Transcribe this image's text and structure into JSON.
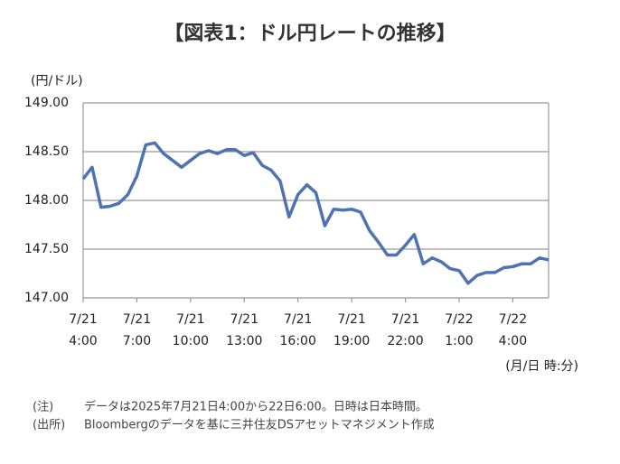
{
  "chart_data": {
    "type": "line",
    "title": "【図表1：ドル円レートの推移】",
    "y_label": "(円/ドル)",
    "x_label": "(月/日 時:分)",
    "notes": [
      [
        "(注)",
        "データは2025年7月21日4:00から22日6:00。日時は日本時間。"
      ],
      [
        "(出所)",
        "Bloombergのデータを基に三井住友DSアセットマネジメント作成"
      ]
    ],
    "x": [
      "7/21 4:00",
      "7/21 4:30",
      "7/21 5:00",
      "7/21 5:30",
      "7/21 6:00",
      "7/21 6:30",
      "7/21 7:00",
      "7/21 7:30",
      "7/21 8:00",
      "7/21 8:30",
      "7/21 9:00",
      "7/21 9:30",
      "7/21 10:00",
      "7/21 10:30",
      "7/21 11:00",
      "7/21 11:30",
      "7/21 12:00",
      "7/21 12:30",
      "7/21 13:00",
      "7/21 13:30",
      "7/21 14:00",
      "7/21 14:30",
      "7/21 15:00",
      "7/21 15:30",
      "7/21 16:00",
      "7/21 16:30",
      "7/21 17:00",
      "7/21 17:30",
      "7/21 18:00",
      "7/21 18:30",
      "7/21 19:00",
      "7/21 19:30",
      "7/21 20:00",
      "7/21 20:30",
      "7/21 21:00",
      "7/21 21:30",
      "7/21 22:00",
      "7/21 22:30",
      "7/21 23:00",
      "7/21 23:30",
      "7/22 0:00",
      "7/22 0:30",
      "7/22 1:00",
      "7/22 1:30",
      "7/22 2:00",
      "7/22 2:30",
      "7/22 3:00",
      "7/22 3:30",
      "7/22 4:00",
      "7/22 4:30",
      "7/22 5:00",
      "7/22 5:30",
      "7/22 6:00"
    ],
    "series": [
      {
        "name": "USD/JPY",
        "color": "#4f73b0",
        "values": [
          148.22,
          148.34,
          147.93,
          147.94,
          147.97,
          148.06,
          148.25,
          148.57,
          148.59,
          148.48,
          148.41,
          148.34,
          148.41,
          148.48,
          148.51,
          148.48,
          148.52,
          148.52,
          148.46,
          148.49,
          148.36,
          148.31,
          148.2,
          147.83,
          148.06,
          148.16,
          148.08,
          147.74,
          147.91,
          147.9,
          147.91,
          147.88,
          147.69,
          147.57,
          147.44,
          147.44,
          147.54,
          147.65,
          147.35,
          147.41,
          147.37,
          147.3,
          147.28,
          147.15,
          147.23,
          147.26,
          147.26,
          147.31,
          147.32,
          147.35,
          147.35,
          147.41,
          147.39
        ]
      }
    ],
    "xlim": [
      "7/21 4:00",
      "7/22 6:00"
    ],
    "xticks": [
      {
        "value": "7/21 4:00",
        "label": [
          "7/21",
          "4:00"
        ]
      },
      {
        "value": "7/21 7:00",
        "label": [
          "7/21",
          "7:00"
        ]
      },
      {
        "value": "7/21 10:00",
        "label": [
          "7/21",
          "10:00"
        ]
      },
      {
        "value": "7/21 13:00",
        "label": [
          "7/21",
          "13:00"
        ]
      },
      {
        "value": "7/21 16:00",
        "label": [
          "7/21",
          "16:00"
        ]
      },
      {
        "value": "7/21 19:00",
        "label": [
          "7/21",
          "19:00"
        ]
      },
      {
        "value": "7/21 22:00",
        "label": [
          "7/21",
          "22:00"
        ]
      },
      {
        "value": "7/22 1:00",
        "label": [
          "7/22",
          "1:00"
        ]
      },
      {
        "value": "7/22 4:00",
        "label": [
          "7/22",
          "4:00"
        ]
      }
    ],
    "ylim": [
      147,
      149
    ],
    "yticks": [
      {
        "value": 147,
        "label": "147.00"
      },
      {
        "value": 147.5,
        "label": "147.50"
      },
      {
        "value": 148,
        "label": "148.00"
      },
      {
        "value": 148.5,
        "label": "148.50"
      },
      {
        "value": 149,
        "label": "149.00"
      }
    ],
    "grid": true
  }
}
